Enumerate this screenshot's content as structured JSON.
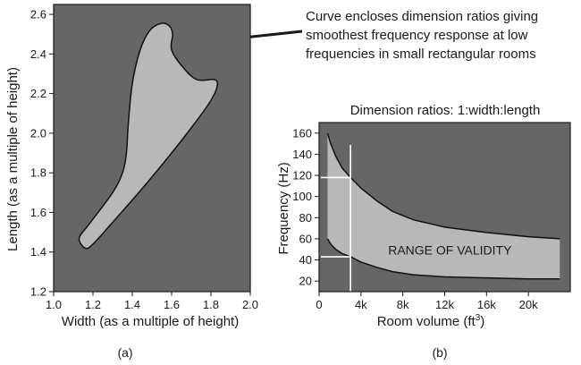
{
  "annotation": {
    "lines": [
      "Curve encloses dimension ratios giving",
      "smoothest frequency response at low",
      "frequencies in small rectangular rooms"
    ]
  },
  "colors": {
    "plot_bg": "#666666",
    "region_fill": "#b8b8b8",
    "curve": "#111111",
    "marker_line": "#ffffff",
    "text": "#1a1a1a"
  },
  "chart_data": [
    {
      "type": "area",
      "panel_label": "(a)",
      "title": "",
      "xlabel": "Width (as a multiple of height)",
      "ylabel": "Length (as a multiple of height)",
      "xlim": [
        1.0,
        2.0
      ],
      "ylim": [
        1.2,
        2.65
      ],
      "xticks": [
        1.0,
        1.2,
        1.4,
        1.6,
        1.8,
        2.0
      ],
      "xtick_labels": [
        "1.0",
        "1.2",
        "1.4",
        "1.6",
        "1.8",
        "2.0"
      ],
      "yticks": [
        1.2,
        1.4,
        1.6,
        1.8,
        2.0,
        2.2,
        2.4,
        2.6
      ],
      "ytick_labels": [
        "1.2",
        "1.4",
        "1.6",
        "1.8",
        "2.0",
        "2.2",
        "2.4",
        "2.6"
      ],
      "region_polygon": [
        [
          1.16,
          1.42
        ],
        [
          1.13,
          1.47
        ],
        [
          1.18,
          1.54
        ],
        [
          1.3,
          1.7
        ],
        [
          1.35,
          1.8
        ],
        [
          1.37,
          1.9
        ],
        [
          1.38,
          2.05
        ],
        [
          1.4,
          2.25
        ],
        [
          1.44,
          2.42
        ],
        [
          1.49,
          2.52
        ],
        [
          1.55,
          2.555
        ],
        [
          1.59,
          2.54
        ],
        [
          1.605,
          2.5
        ],
        [
          1.6,
          2.42
        ],
        [
          1.66,
          2.33
        ],
        [
          1.73,
          2.27
        ],
        [
          1.82,
          2.27
        ],
        [
          1.83,
          2.23
        ],
        [
          1.79,
          2.15
        ],
        [
          1.71,
          2.04
        ],
        [
          1.6,
          1.9
        ],
        [
          1.45,
          1.72
        ],
        [
          1.3,
          1.55
        ],
        [
          1.2,
          1.44
        ]
      ]
    },
    {
      "type": "area",
      "panel_label": "(b)",
      "title": "Dimension ratios: 1:width:length",
      "xlabel": "Room volume (ft",
      "xlabel_sup": "3",
      "xlabel_end": ")",
      "ylabel": "Frequency (Hz)",
      "xlim": [
        0,
        24000
      ],
      "ylim": [
        10,
        170
      ],
      "xticks": [
        0,
        4000,
        8000,
        12000,
        16000,
        20000
      ],
      "xtick_labels": [
        "0",
        "4k",
        "8k",
        "12k",
        "16k",
        "20k"
      ],
      "yticks": [
        20,
        40,
        60,
        80,
        100,
        120,
        140,
        160
      ],
      "ytick_labels": [
        "20",
        "40",
        "60",
        "80",
        "100",
        "120",
        "140",
        "160"
      ],
      "region_label": "RANGE OF VALIDITY",
      "upper_curve": {
        "x": [
          800,
          1100,
          1600,
          2200,
          3000,
          4000,
          5500,
          7000,
          9000,
          12000,
          16000,
          20000,
          23000
        ],
        "y": [
          160,
          150,
          138,
          127,
          118,
          108,
          96,
          86,
          78,
          71,
          66,
          62,
          60
        ]
      },
      "lower_curve": {
        "x": [
          800,
          1100,
          1600,
          2200,
          3000,
          4000,
          5500,
          7000,
          9000,
          12000,
          16000,
          20000,
          23000
        ],
        "y": [
          60,
          55,
          50,
          46,
          43,
          38,
          33,
          29,
          26,
          24,
          23,
          22,
          22
        ]
      },
      "example_volume": 3000,
      "example_upper": 118,
      "example_lower": 43
    }
  ]
}
